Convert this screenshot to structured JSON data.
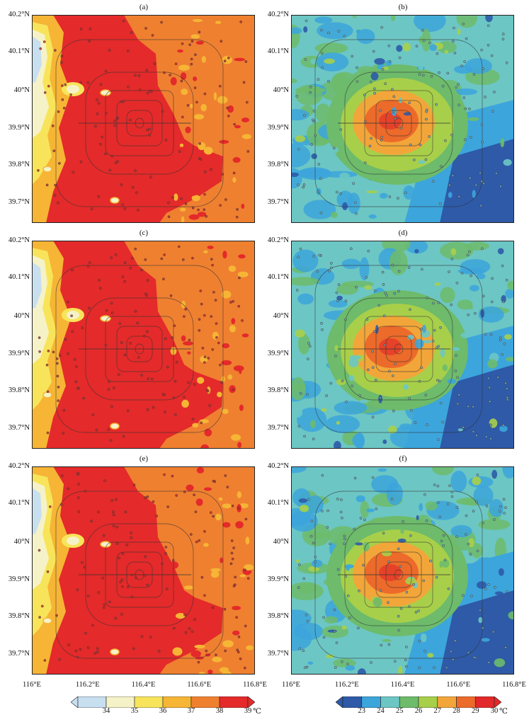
{
  "panels": [
    {
      "id": "a",
      "label": "(a)"
    },
    {
      "id": "b",
      "label": "(b)"
    },
    {
      "id": "c",
      "label": "(c)"
    },
    {
      "id": "d",
      "label": "(d)"
    },
    {
      "id": "e",
      "label": "(e)"
    },
    {
      "id": "f",
      "label": "(f)"
    }
  ],
  "latitude_labels": [
    "40.2°N",
    "40.1°N",
    "40°N",
    "39.9°N",
    "39.8°N",
    "39.7°N"
  ],
  "longitude_labels": [
    "116°E",
    "116.2°E",
    "116.4°E",
    "116.6°E",
    "116.8°E"
  ],
  "colorbar_left": {
    "ticks": [
      "34",
      "35",
      "36",
      "37",
      "38",
      "39"
    ],
    "unit": "℃",
    "colors": [
      "#c8dff0",
      "#f6f2c8",
      "#f8e45a",
      "#f6b535",
      "#ef8030",
      "#e42a2a"
    ]
  },
  "colorbar_right": {
    "ticks": [
      "23",
      "24",
      "25",
      "26",
      "27",
      "28",
      "29",
      "30"
    ],
    "unit": "℃",
    "colors": [
      "#2e5aa8",
      "#3ca5dc",
      "#6cc6c4",
      "#6dbb6b",
      "#a8cf4a",
      "#f2a63a",
      "#ec6a2a",
      "#e2282a"
    ]
  }
}
